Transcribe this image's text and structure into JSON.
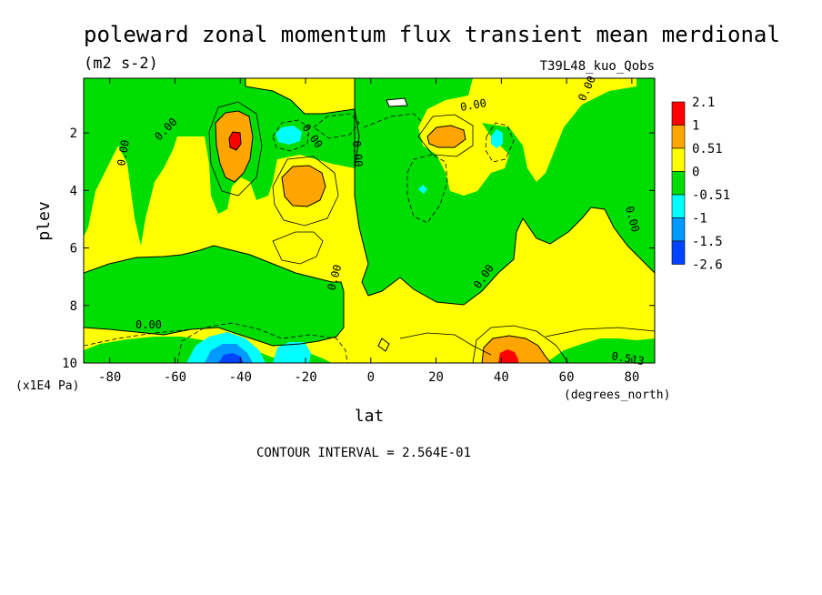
{
  "chart_data": {
    "type": "heatmap",
    "title": "poleward zonal momentum flux transient mean merdional",
    "units": "(m2 s-2)",
    "run_label": "T39L48_kuo_Qobs",
    "xlabel": "lat",
    "x_units": "(degrees_north)",
    "ylabel": "plev",
    "y_units": "(x1E4 Pa)",
    "xlim": [
      -88,
      87
    ],
    "ylim": [
      10,
      0.1
    ],
    "x_ticks": [
      -80,
      -60,
      -40,
      -20,
      0,
      20,
      40,
      60,
      80
    ],
    "y_ticks": [
      2,
      4,
      6,
      8,
      10
    ],
    "contour_interval_text": "CONTOUR INTERVAL = 2.564E-01",
    "colorbar": {
      "levels": [
        "2.1",
        "1",
        "0.51",
        "0",
        "-0.51",
        "-1",
        "-1.5",
        "-2.6"
      ],
      "colors": [
        "#ff0000",
        "#ffa500",
        "#ffff00",
        "#00dd00",
        "#00ffff",
        "#0099ff",
        "#0044ff"
      ]
    },
    "contour_labels": [
      "0.00",
      "0.00",
      "0.00",
      "0.00",
      "0.00",
      "0.00",
      "0.00",
      "0.00",
      "0.00",
      "0.00",
      "0.513"
    ],
    "features": [
      {
        "lat": -40,
        "plev": 2.2,
        "value": 2.1
      },
      {
        "lat": -18,
        "plev": 4.0,
        "value": 0.9
      },
      {
        "lat": -25,
        "plev": 2.0,
        "value": -0.8
      },
      {
        "lat": 25,
        "plev": 2.0,
        "value": 0.8
      },
      {
        "lat": 42,
        "plev": 2.1,
        "value": -0.7
      },
      {
        "lat": 17,
        "plev": 4.0,
        "value": -0.6
      },
      {
        "lat": -45,
        "plev": 9.7,
        "value": -2.6
      },
      {
        "lat": -25,
        "plev": 9.6,
        "value": -1.0
      },
      {
        "lat": 42,
        "plev": 9.8,
        "value": 2.1
      }
    ]
  }
}
